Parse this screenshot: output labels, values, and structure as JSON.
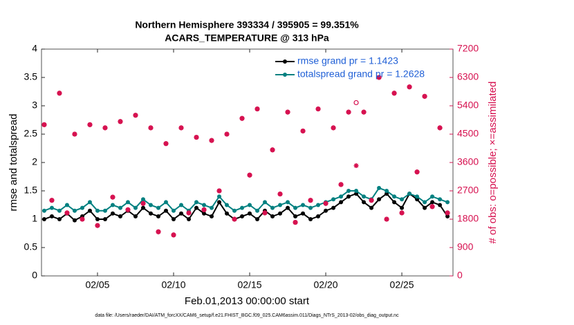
{
  "chart_data": {
    "type": "line",
    "title": [
      "Northern Hemisphere 393334 / 395905 = 99.351%",
      "ACARS_TEMPERATURE @ 313 hPa"
    ],
    "xlabel": "Feb.01,2013 00:00:00 start",
    "ylabel": "rmse and totalspread",
    "y2label": "# of obs: o=possible; ×=assimilated",
    "footnote": "data file: /Users/raeder/DAI/ATM_forcXX/CAM6_setup/f.e21.FHIST_BGC.f09_025.CAM6assim.011/Diags_NTrS_2013-02/obs_diag_output.nc",
    "legend": "upper right",
    "xlim": [
      1.32,
      28.36
    ],
    "xticks": [
      {
        "value": 5,
        "label": "02/05"
      },
      {
        "value": 10,
        "label": "02/10"
      },
      {
        "value": 15,
        "label": "02/15"
      },
      {
        "value": 20,
        "label": "02/20"
      },
      {
        "value": 25,
        "label": "02/25"
      }
    ],
    "ylim": [
      0,
      4
    ],
    "yticks": [
      0,
      0.5,
      1,
      1.5,
      2,
      2.5,
      3,
      3.5,
      4
    ],
    "y2lim": [
      0,
      7200
    ],
    "y2ticks": [
      0,
      900,
      1800,
      2700,
      3600,
      4500,
      5400,
      6300,
      7200
    ],
    "x": [
      1.5,
      2,
      2.5,
      3,
      3.5,
      4,
      4.5,
      5,
      5.5,
      6,
      6.5,
      7,
      7.5,
      8,
      8.5,
      9,
      9.5,
      10,
      10.5,
      11,
      11.5,
      12,
      12.5,
      13,
      13.5,
      14,
      14.5,
      15,
      15.5,
      16,
      16.5,
      17,
      17.5,
      18,
      18.5,
      19,
      19.5,
      20,
      20.5,
      21,
      21.5,
      22,
      22.5,
      23,
      23.5,
      24,
      24.5,
      25,
      25.5,
      26,
      26.5,
      27,
      27.5,
      28
    ],
    "series": [
      {
        "name": "rmse grand pr = 1.1423",
        "color": "#000000",
        "marker": "dot",
        "values": [
          1.0,
          1.05,
          1.0,
          1.1,
          0.98,
          1.05,
          1.15,
          1.0,
          1.0,
          1.1,
          1.05,
          1.15,
          1.05,
          1.2,
          1.1,
          1.05,
          1.15,
          1.0,
          1.1,
          1.0,
          1.2,
          1.1,
          1.05,
          1.3,
          1.1,
          1.0,
          1.05,
          1.1,
          1.0,
          1.15,
          1.05,
          1.1,
          1.2,
          1.05,
          1.1,
          1.0,
          1.05,
          1.15,
          1.2,
          1.3,
          1.4,
          1.45,
          1.3,
          1.2,
          1.35,
          1.45,
          1.3,
          1.2,
          1.45,
          1.35,
          1.2,
          1.3,
          1.25,
          1.05
        ]
      },
      {
        "name": "totalspread grand pr = 1.2628",
        "color": "#008080",
        "marker": "dot",
        "values": [
          1.15,
          1.2,
          1.15,
          1.25,
          1.15,
          1.2,
          1.3,
          1.15,
          1.15,
          1.25,
          1.2,
          1.3,
          1.2,
          1.35,
          1.25,
          1.2,
          1.3,
          1.15,
          1.25,
          1.15,
          1.3,
          1.25,
          1.2,
          1.4,
          1.25,
          1.15,
          1.2,
          1.25,
          1.15,
          1.3,
          1.2,
          1.25,
          1.3,
          1.2,
          1.25,
          1.2,
          1.25,
          1.3,
          1.35,
          1.4,
          1.5,
          1.5,
          1.4,
          1.35,
          1.55,
          1.5,
          1.4,
          1.35,
          1.45,
          1.4,
          1.3,
          1.4,
          1.35,
          1.3
        ]
      },
      {
        "color": "#d6104f",
        "marker": "circle",
        "axis": "y2",
        "values": [
          4800,
          2400,
          5800,
          2000,
          4500,
          1800,
          4800,
          1600,
          4700,
          2500,
          4900,
          2100,
          5100,
          2300,
          4700,
          1400,
          4200,
          1300,
          4700,
          2000,
          4400,
          2100,
          4300,
          2700,
          4500,
          1800,
          5000,
          3200,
          5300,
          2000,
          4000,
          2600,
          5200,
          1700,
          4600,
          2400,
          5300,
          2300,
          4700,
          2900,
          5200,
          5500,
          5200,
          2400,
          6300,
          1800,
          5800,
          2000,
          6000,
          3300,
          5700,
          2200,
          4700,
          2000
        ]
      },
      {
        "color": "#d6104f",
        "marker": "asterisk",
        "axis": "y2",
        "values": [
          4800,
          2400,
          5800,
          2000,
          4500,
          1800,
          4800,
          1600,
          4700,
          2500,
          4900,
          2100,
          5100,
          2300,
          4700,
          1400,
          4200,
          1300,
          4700,
          2000,
          4400,
          2100,
          4300,
          2700,
          4500,
          1800,
          5000,
          3200,
          5300,
          2000,
          4000,
          2600,
          5200,
          1700,
          4600,
          2400,
          5300,
          2300,
          4700,
          2900,
          5200,
          3500,
          5200,
          2400,
          6300,
          1800,
          5800,
          2000,
          6000,
          3300,
          5700,
          2200,
          4700,
          2000
        ]
      }
    ]
  }
}
